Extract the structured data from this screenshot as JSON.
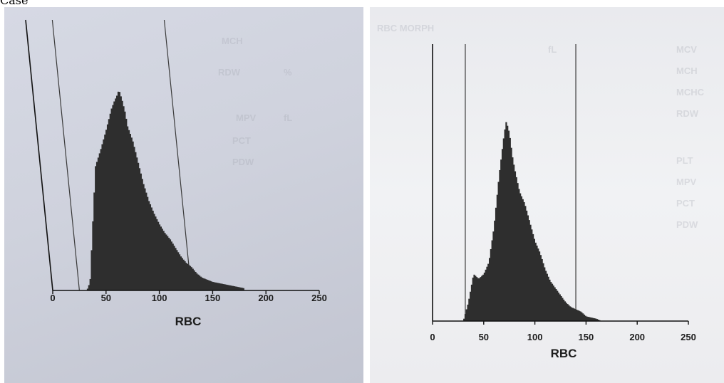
{
  "caption": "Case",
  "colors": {
    "bars": "#2e2e2e",
    "axes": "#111111",
    "gates": "#3a3a3a"
  },
  "chart_data": [
    {
      "type": "area",
      "panel": "left",
      "xlabel": "RBC",
      "xlim": [
        0,
        250
      ],
      "xticks": [
        0,
        50,
        100,
        150,
        200,
        250
      ],
      "gates": [
        25,
        130
      ],
      "x": [
        32,
        35,
        40,
        45,
        50,
        55,
        58,
        60,
        62,
        65,
        68,
        70,
        75,
        80,
        85,
        90,
        95,
        100,
        105,
        110,
        115,
        120,
        125,
        130,
        135,
        140,
        150,
        160,
        170,
        180
      ],
      "y": [
        0,
        4,
        58,
        66,
        75,
        85,
        89,
        91,
        94,
        89,
        83,
        77,
        70,
        60,
        50,
        42,
        36,
        31,
        27,
        24,
        20,
        16,
        13,
        11,
        8,
        6,
        4,
        3,
        2,
        1
      ]
    },
    {
      "type": "area",
      "panel": "right",
      "xlabel": "RBC",
      "xlim": [
        0,
        250
      ],
      "xticks": [
        0,
        50,
        100,
        150,
        200,
        250
      ],
      "gates": [
        32,
        140
      ],
      "x": [
        30,
        35,
        40,
        45,
        50,
        55,
        60,
        65,
        70,
        72,
        75,
        78,
        80,
        85,
        90,
        95,
        100,
        105,
        110,
        115,
        120,
        125,
        130,
        135,
        140,
        145,
        150,
        155,
        160,
        165
      ],
      "y": [
        0,
        8,
        20,
        18,
        20,
        25,
        40,
        62,
        80,
        85,
        80,
        70,
        65,
        55,
        50,
        42,
        34,
        29,
        22,
        17,
        14,
        11,
        8,
        6,
        5,
        4,
        2,
        1.5,
        1,
        0
      ]
    }
  ]
}
